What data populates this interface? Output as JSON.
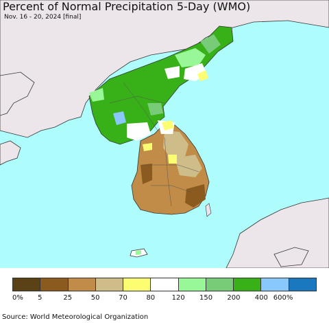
{
  "title": "Percent of Normal Precipitation 5-Day (WMO)",
  "subtitle": "Nov. 16 - 20, 2024 [final]",
  "source": "Source: World Meteorological Organization",
  "colors": {
    "ocean": "#aefcfc",
    "land_outside": "#ece6ea",
    "border": "#333333"
  },
  "legend": {
    "colors": [
      "#5a4216",
      "#8b5a1e",
      "#c08c48",
      "#cfbd89",
      "#fdfd72",
      "#ffffff",
      "#98f898",
      "#78cc78",
      "#38b018",
      "#88c8fc",
      "#1a78be"
    ],
    "labels": [
      "0%",
      "5",
      "25",
      "50",
      "70",
      "80",
      "120",
      "150",
      "200",
      "400",
      "600%"
    ]
  }
}
